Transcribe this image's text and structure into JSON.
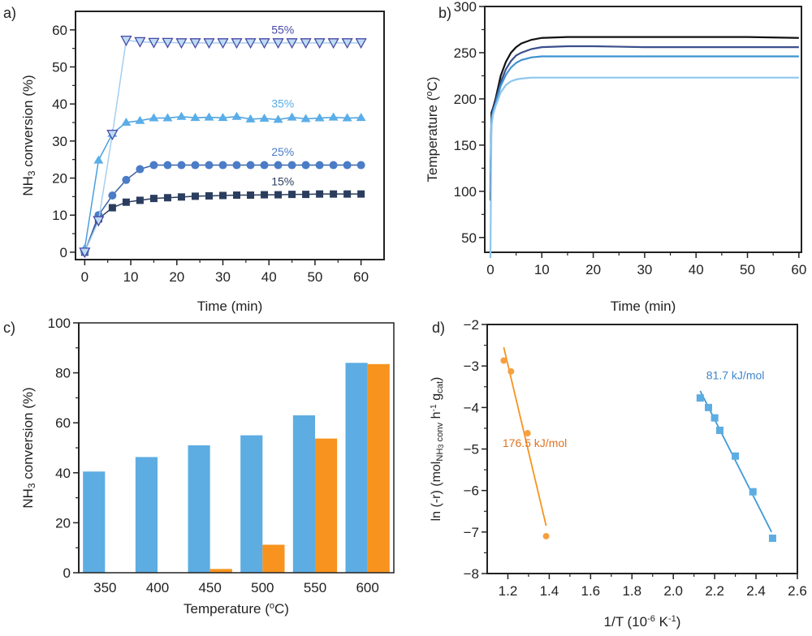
{
  "chart_data": [
    {
      "panel": "a)",
      "type": "line",
      "xlabel": [
        {
          "t": "Time (min)"
        }
      ],
      "ylabel": [
        {
          "t": "NH"
        },
        {
          "t": "3",
          "sub": true
        },
        {
          "t": " conversion (%)"
        }
      ],
      "xlim": [
        -2,
        65
      ],
      "ylim": [
        -2,
        65
      ],
      "xticks": [
        0,
        10,
        20,
        30,
        40,
        50,
        60
      ],
      "yticks": [
        0,
        10,
        20,
        30,
        40,
        50,
        60
      ],
      "grid": false,
      "x": [
        0,
        3,
        6,
        9,
        12,
        15,
        18,
        21,
        24,
        27,
        30,
        33,
        36,
        39,
        42,
        45,
        48,
        51,
        54,
        57,
        60
      ],
      "series": [
        {
          "name": "15%",
          "color": "#2b3d5e",
          "line": "#2b3d5e",
          "marker": "square",
          "values": [
            0,
            9,
            12,
            13.5,
            14,
            14.5,
            14.7,
            14.9,
            15.1,
            15.2,
            15.3,
            15.4,
            15.4,
            15.5,
            15.5,
            15.6,
            15.6,
            15.7,
            15.7,
            15.7,
            15.7
          ],
          "label_at": [
            43,
            18
          ]
        },
        {
          "name": "25%",
          "color": "#4a7cc7",
          "line": "#3b62a8",
          "marker": "circle",
          "values": [
            0,
            10,
            15.3,
            19.5,
            22.4,
            23.5,
            23.5,
            23.5,
            23.5,
            23.5,
            23.5,
            23.5,
            23.5,
            23.5,
            23.5,
            23.5,
            23.5,
            23.5,
            23.5,
            23.5,
            23.5
          ],
          "label_at": [
            43,
            26
          ]
        },
        {
          "name": "35%",
          "color": "#5aaee8",
          "line": "#4a9fdc",
          "marker": "triangle",
          "values": [
            1,
            24.8,
            32,
            35,
            35.5,
            36.2,
            36.2,
            36.6,
            36.3,
            36.4,
            36.3,
            36.6,
            35.9,
            36.1,
            35.8,
            36.4,
            36,
            36.2,
            36.4,
            36.2,
            36.3
          ],
          "label_at": [
            43,
            39
          ]
        },
        {
          "name": "55%",
          "color": "#4848a8",
          "fill": "#bcdcf2",
          "line": "#a4cff0",
          "marker": "triangle-down",
          "values": [
            0,
            8.5,
            31.8,
            57.2,
            56.8,
            56.6,
            56.6,
            56.5,
            56.5,
            56.5,
            56.5,
            56.5,
            56.5,
            56.5,
            56.5,
            56.5,
            56.5,
            56.5,
            56.5,
            56.5,
            56.5
          ],
          "label_at": [
            43,
            59
          ]
        }
      ]
    },
    {
      "panel": "b)",
      "type": "line",
      "xlabel": [
        {
          "t": "Time (min)"
        }
      ],
      "ylabel": [
        {
          "t": "Temperature ("
        },
        {
          "t": "o",
          "sup": true
        },
        {
          "t": "C)"
        }
      ],
      "xlim": [
        -1.1,
        60.5
      ],
      "ylim": [
        34,
        300
      ],
      "xticks": [
        0,
        10,
        20,
        30,
        40,
        50,
        60
      ],
      "yticks": [
        50,
        100,
        150,
        200,
        250,
        300
      ],
      "grid": false,
      "x": [
        0,
        0.2,
        0.5,
        1,
        2,
        3,
        4,
        5,
        6,
        8,
        10,
        15,
        20,
        30,
        40,
        50,
        60
      ],
      "series": [
        {
          "color": "#111111",
          "values": [
            90,
            185,
            190,
            200,
            225,
            240,
            250,
            256,
            260,
            264,
            266,
            267,
            267,
            267,
            267,
            267,
            266
          ]
        },
        {
          "color": "#3a4f8c",
          "values": [
            100,
            180,
            188,
            197,
            218,
            232,
            241,
            247,
            250,
            254,
            256,
            257,
            257,
            256,
            256,
            256,
            256
          ]
        },
        {
          "color": "#3f93d2",
          "values": [
            120,
            178,
            186,
            195,
            214,
            226,
            234,
            239,
            242,
            245,
            246,
            246,
            246,
            246,
            246,
            246,
            246
          ]
        },
        {
          "color": "#8ec6ee",
          "values": [
            28,
            170,
            183,
            192,
            207,
            215,
            219,
            221,
            222,
            223,
            223,
            223,
            223,
            223,
            223,
            223,
            223
          ]
        }
      ]
    },
    {
      "panel": "c)",
      "type": "bar",
      "xlabel": [
        {
          "t": "Temperature ("
        },
        {
          "t": "o",
          "sup": true
        },
        {
          "t": "C)"
        }
      ],
      "ylabel": [
        {
          "t": "NH"
        },
        {
          "t": "3",
          "sub": true
        },
        {
          "t": " conversion (%)"
        }
      ],
      "ylim": [
        0,
        100
      ],
      "yticks": [
        0,
        20,
        40,
        60,
        80,
        100
      ],
      "grid": false,
      "categories": [
        "350",
        "400",
        "450",
        "500",
        "550",
        "600"
      ],
      "series": [
        {
          "color": "#5dade2",
          "values": [
            40.5,
            46.3,
            51,
            55,
            63,
            84
          ]
        },
        {
          "color": "#f7931e",
          "values": [
            0,
            0,
            1.5,
            11.2,
            53.7,
            83.5
          ]
        }
      ]
    },
    {
      "panel": "d)",
      "type": "scatter",
      "xlabel": [
        {
          "t": "1/T (10"
        },
        {
          "t": "-6",
          "sup": true
        },
        {
          "t": " K"
        },
        {
          "t": "-1",
          "sup": true
        },
        {
          "t": ")"
        }
      ],
      "ylabel": [
        {
          "t": "ln (-r) (mol"
        },
        {
          "t": "NH",
          "sub": true
        },
        {
          "t": "3",
          "subsub": true
        },
        {
          "t": " conv",
          "sub": true
        },
        {
          "t": " h"
        },
        {
          "t": "-1",
          "sup": true
        },
        {
          "t": " g"
        },
        {
          "t": "cat",
          "sub": true
        },
        {
          "t": ")"
        }
      ],
      "xlim": [
        1.1,
        2.6
      ],
      "ylim": [
        -8,
        -2
      ],
      "xticks": [
        1.2,
        1.4,
        1.6,
        1.8,
        2.0,
        2.2,
        2.4,
        2.6
      ],
      "yticks": [
        -8,
        -7,
        -6,
        -5,
        -4,
        -3,
        -2
      ],
      "grid": false,
      "series": [
        {
          "color": "#f7a040",
          "line": "#f7931e",
          "marker": "circle",
          "label": "176.5 kJ/mol",
          "label_color": "#e0721e",
          "label_at": [
            1.33,
            -4.95
          ],
          "x": [
            1.18,
            1.215,
            1.295,
            1.385
          ],
          "values": [
            -2.87,
            -3.13,
            -4.62,
            -7.1
          ],
          "fit": [
            [
              1.18,
              -2.55
            ],
            [
              1.385,
              -6.85
            ]
          ]
        },
        {
          "color": "#5dade2",
          "line": "#3f9ad8",
          "marker": "square",
          "label": "81.7 kJ/mol",
          "label_color": "#3f86cc",
          "label_at": [
            2.3,
            -3.32
          ],
          "x": [
            2.13,
            2.17,
            2.2,
            2.225,
            2.3,
            2.385,
            2.48
          ],
          "values": [
            -3.77,
            -4.0,
            -4.25,
            -4.55,
            -5.17,
            -6.03,
            -7.15
          ],
          "fit": [
            [
              2.13,
              -3.6
            ],
            [
              2.475,
              -7.0
            ]
          ]
        }
      ]
    }
  ]
}
